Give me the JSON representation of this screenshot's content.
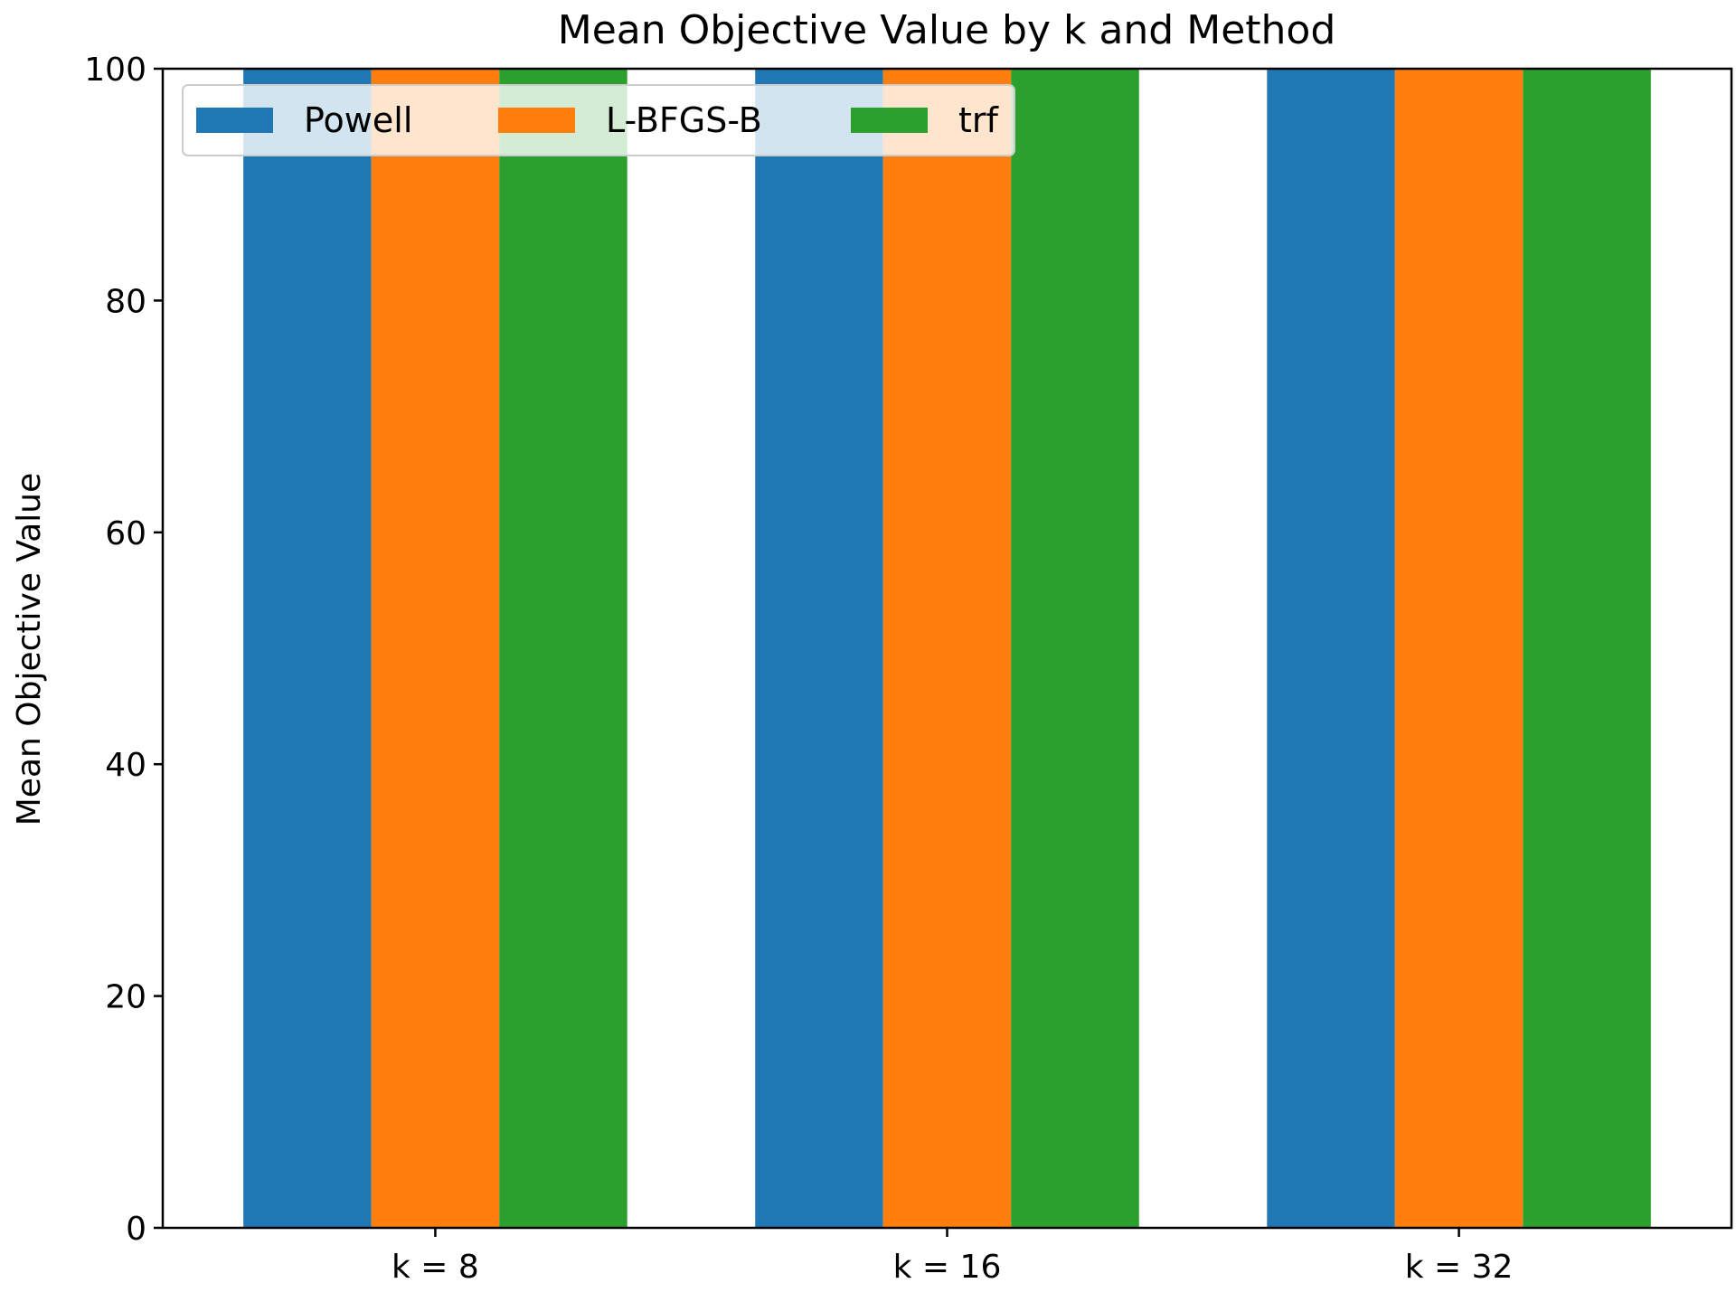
{
  "chart_data": {
    "type": "bar",
    "title": "Mean Objective Value by k and Method",
    "xlabel": "",
    "ylabel": "Mean Objective Value",
    "categories": [
      "k = 8",
      "k = 16",
      "k = 32"
    ],
    "series": [
      {
        "name": "Powell",
        "color": "#1f77b4",
        "values": [
          100,
          100,
          100
        ]
      },
      {
        "name": "L-BFGS-B",
        "color": "#ff7f0e",
        "values": [
          100,
          100,
          100
        ]
      },
      {
        "name": "trf",
        "color": "#2ca02c",
        "values": [
          100,
          100,
          100
        ]
      }
    ],
    "ylim": [
      0,
      100
    ],
    "yticks": [
      0,
      20,
      40,
      60,
      80,
      100
    ],
    "grid": false,
    "legend_position": "top-left"
  }
}
